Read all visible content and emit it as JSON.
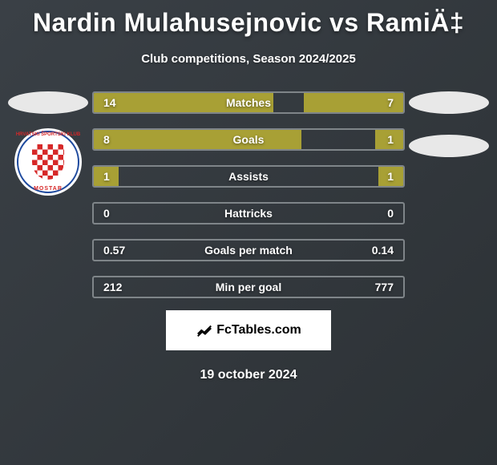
{
  "header": {
    "title": "Nardin Mulahusejnovic vs RamiÄ‡",
    "subtitle": "Club competitions, Season 2024/2025"
  },
  "colors": {
    "bar_left": "#a8a035",
    "bar_right": "#a8a035",
    "row_border": "#7f8589",
    "placeholder": "#e8e8e8",
    "text": "#ffffff"
  },
  "club_badge": {
    "name": "Zrinjski Mostar",
    "top_text": "HRVATSKI ŠPORTSKI KLUB",
    "bottom_text": "MOSTAR",
    "primary_color": "#d62828",
    "ring_color": "#1e4a9e"
  },
  "stats": [
    {
      "label": "Matches",
      "left_val": "14",
      "right_val": "7",
      "left_pct": 58,
      "right_pct": 32
    },
    {
      "label": "Goals",
      "left_val": "8",
      "right_val": "1",
      "left_pct": 67,
      "right_pct": 9
    },
    {
      "label": "Assists",
      "left_val": "1",
      "right_val": "1",
      "left_pct": 8,
      "right_pct": 8
    },
    {
      "label": "Hattricks",
      "left_val": "0",
      "right_val": "0",
      "left_pct": 0,
      "right_pct": 0
    },
    {
      "label": "Goals per match",
      "left_val": "0.57",
      "right_val": "0.14",
      "left_pct": 0,
      "right_pct": 0
    },
    {
      "label": "Min per goal",
      "left_val": "212",
      "right_val": "777",
      "left_pct": 0,
      "right_pct": 0
    }
  ],
  "brand": {
    "label": "FcTables.com"
  },
  "date": "19 october 2024"
}
